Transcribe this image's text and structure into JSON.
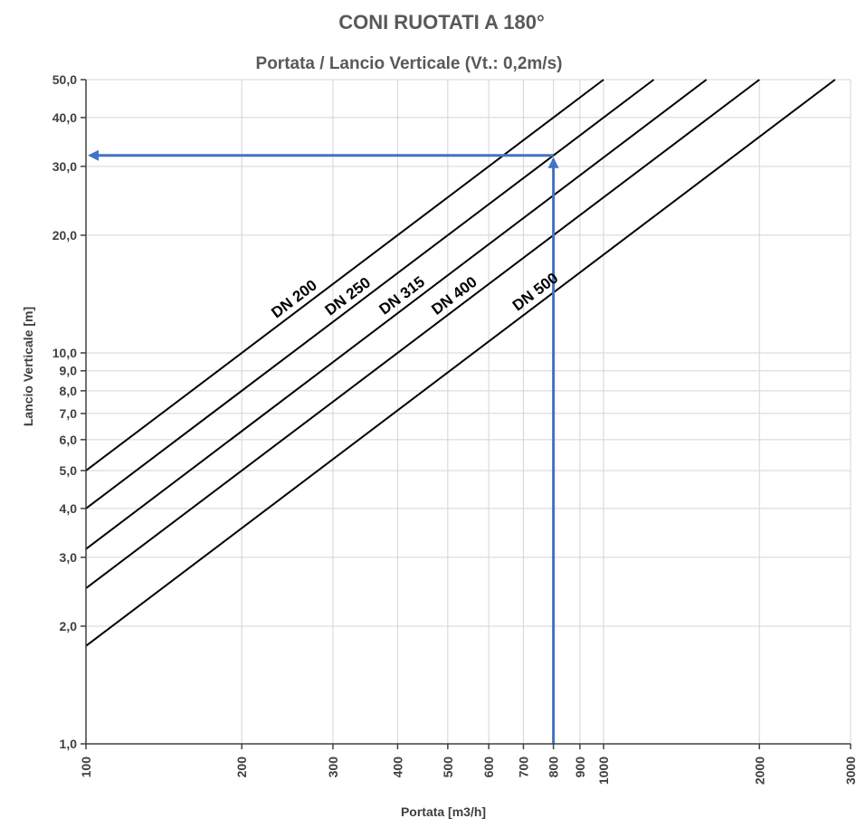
{
  "chart_data": {
    "type": "line",
    "title": "CONI RUOTATI A 180°",
    "subtitle": "Portata / Lancio Verticale (Vt.: 0,2m/s)",
    "xlabel": "Portata [m3/h]",
    "ylabel": "Lancio Verticale [m]",
    "xscale": "log",
    "yscale": "log",
    "xlim": [
      100,
      3000
    ],
    "ylim": [
      1,
      50
    ],
    "grid": true,
    "x_ticks": [
      {
        "value": 100,
        "label": "100"
      },
      {
        "value": 200,
        "label": "200"
      },
      {
        "value": 300,
        "label": "300"
      },
      {
        "value": 400,
        "label": "400"
      },
      {
        "value": 500,
        "label": "500"
      },
      {
        "value": 600,
        "label": "600"
      },
      {
        "value": 700,
        "label": "700"
      },
      {
        "value": 800,
        "label": "800"
      },
      {
        "value": 900,
        "label": "900"
      },
      {
        "value": 1000,
        "label": "1000"
      },
      {
        "value": 2000,
        "label": "2000"
      },
      {
        "value": 3000,
        "label": "3000"
      }
    ],
    "y_ticks": [
      {
        "value": 1,
        "label": "1,0"
      },
      {
        "value": 2,
        "label": "2,0"
      },
      {
        "value": 3,
        "label": "3,0"
      },
      {
        "value": 4,
        "label": "4,0"
      },
      {
        "value": 5,
        "label": "5,0"
      },
      {
        "value": 6,
        "label": "6,0"
      },
      {
        "value": 7,
        "label": "7,0"
      },
      {
        "value": 8,
        "label": "8,0"
      },
      {
        "value": 9,
        "label": "9,0"
      },
      {
        "value": 10,
        "label": "10,0"
      },
      {
        "value": 20,
        "label": "20,0"
      },
      {
        "value": 30,
        "label": "30,0"
      },
      {
        "value": 40,
        "label": "40,0"
      },
      {
        "value": 50,
        "label": "50,0"
      }
    ],
    "series": [
      {
        "name": "DN 200",
        "x": [
          100,
          1000
        ],
        "y": [
          5.0,
          50.0
        ],
        "label_at": 260
      },
      {
        "name": "DN 250",
        "x": [
          100,
          1250
        ],
        "y": [
          4.0,
          50.0
        ],
        "label_at": 330
      },
      {
        "name": "DN 315",
        "x": [
          100,
          1580
        ],
        "y": [
          3.15,
          50.0
        ],
        "label_at": 420
      },
      {
        "name": "DN 400",
        "x": [
          100,
          2000
        ],
        "y": [
          2.5,
          50.0
        ],
        "label_at": 530
      },
      {
        "name": "DN 500",
        "x": [
          100,
          2800
        ],
        "y": [
          1.78,
          50.0
        ],
        "label_at": 760
      }
    ],
    "annotation": {
      "type": "reading-arrow",
      "color": "#4472c4",
      "x": 800,
      "y": 32
    }
  }
}
